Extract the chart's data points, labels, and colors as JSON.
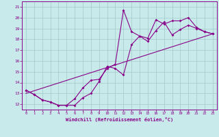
{
  "title": "",
  "xlabel": "Windchill (Refroidissement éolien,°C)",
  "ylabel": "",
  "xlim": [
    -0.5,
    23.5
  ],
  "ylim": [
    11.5,
    21.5
  ],
  "xticks": [
    0,
    1,
    2,
    3,
    4,
    5,
    6,
    7,
    8,
    9,
    10,
    11,
    12,
    13,
    14,
    15,
    16,
    17,
    18,
    19,
    20,
    21,
    22,
    23
  ],
  "yticks": [
    12,
    13,
    14,
    15,
    16,
    17,
    18,
    19,
    20,
    21
  ],
  "bg_color": "#c8eaea",
  "line_color": "#880088",
  "grid_color": "#a0c8c8",
  "series1_x": [
    0,
    1,
    2,
    3,
    4,
    5,
    6,
    7,
    8,
    9,
    10,
    11,
    12,
    13,
    14,
    15,
    16,
    17,
    18,
    19,
    20,
    21,
    22,
    23
  ],
  "series1_y": [
    13.3,
    12.9,
    12.4,
    12.2,
    11.9,
    11.9,
    11.9,
    12.6,
    13.0,
    14.1,
    15.5,
    15.3,
    14.7,
    17.5,
    18.3,
    17.8,
    18.8,
    19.6,
    18.4,
    18.9,
    19.3,
    19.0,
    18.7,
    18.5
  ],
  "series2_x": [
    0,
    1,
    2,
    3,
    4,
    5,
    6,
    7,
    8,
    9,
    10,
    11,
    12,
    13,
    14,
    15,
    16,
    17,
    18,
    19,
    20,
    21,
    22,
    23
  ],
  "series2_y": [
    13.3,
    12.9,
    12.4,
    12.2,
    11.9,
    11.9,
    12.5,
    13.5,
    14.2,
    14.3,
    15.3,
    15.7,
    20.7,
    18.7,
    18.3,
    18.1,
    19.8,
    19.4,
    19.7,
    19.7,
    20.0,
    19.1,
    18.7,
    18.5
  ],
  "series3_x": [
    0,
    23
  ],
  "series3_y": [
    13.0,
    18.5
  ]
}
